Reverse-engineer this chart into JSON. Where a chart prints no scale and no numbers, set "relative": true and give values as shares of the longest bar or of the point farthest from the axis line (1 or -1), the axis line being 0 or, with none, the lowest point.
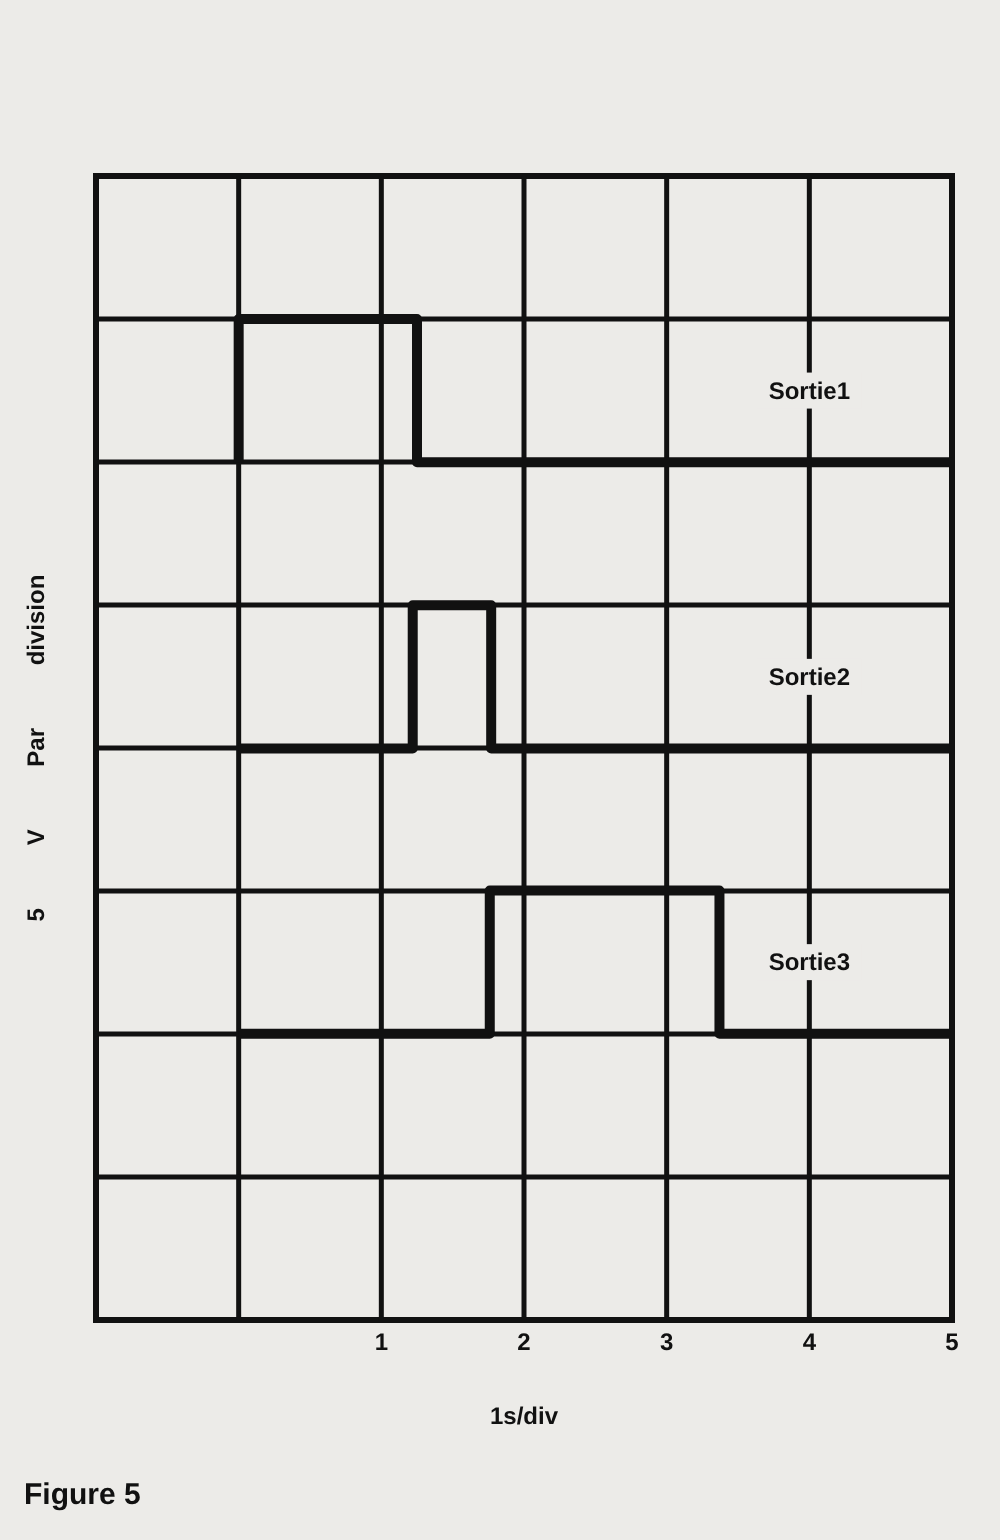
{
  "chart_data": {
    "type": "step",
    "relative": true,
    "xlabel": "1s/div",
    "ylabel": "5 V Par division",
    "annotations": [
      "Figure 5"
    ],
    "xlim": [
      -1,
      5
    ],
    "xticks": [
      {
        "value": -1,
        "label": null
      },
      {
        "value": 0,
        "label": null
      },
      1,
      2,
      3,
      4,
      5
    ],
    "grid": true,
    "marker": "none",
    "line_style": "solid",
    "series": [
      {
        "name": "Sortie1",
        "color": "#111111",
        "x": [
          0,
          0,
          1.25,
          5
        ],
        "values": [
          0.857,
          1,
          0.857,
          0.857
        ]
      },
      {
        "name": "Sortie2",
        "color": "#111111",
        "x": [
          0,
          1.22,
          1.77,
          5
        ],
        "values": [
          0.571,
          0.714,
          0.571,
          0.571
        ]
      },
      {
        "name": "Sortie3",
        "color": "#111111",
        "x": [
          0,
          1.76,
          3.37,
          5
        ],
        "values": [
          0.286,
          0.429,
          0.286,
          0.286
        ]
      }
    ]
  }
}
